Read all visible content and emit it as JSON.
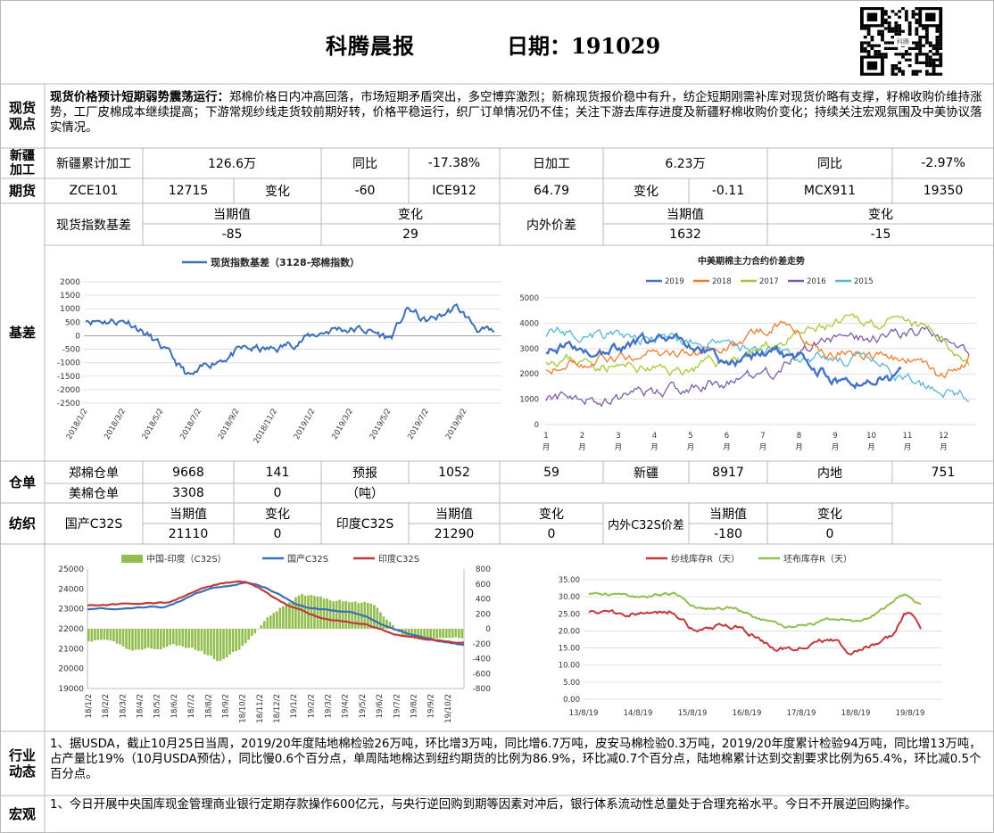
{
  "header": {
    "title": "科腾晨报",
    "date_label": "日期：",
    "date_value": "191029",
    "qr_text": "科腾"
  },
  "spot_view": {
    "label": "现货观点",
    "headline": "现货价格预计短期弱势震荡运行：",
    "text": "郑棉价格日内冲高回落，市场短期矛盾突出，多空博弈激烈；新棉现货报价稳中有升，纺企短期刚需补库对现货价略有支撑，籽棉收购价维持涨势，工厂皮棉成本继续提高；下游常规纱线走货较前期好转，价格平稳运行，织厂订单情况仍不佳；关注下游去库存进度及新疆籽棉收购价变化；持续关注宏观氛围及中美协议落实情况。"
  },
  "xinjiang": {
    "label": "新疆加工",
    "cum_label": "新疆累计加工",
    "cum_value": "126.6万",
    "yoy_label1": "同比",
    "yoy_value1": "-17.38%",
    "daily_label": "日加工",
    "daily_value": "6.23万",
    "yoy_label2": "同比",
    "yoy_value2": "-2.97%"
  },
  "futures": {
    "label": "期货",
    "zce_code": "ZCE101",
    "zce_price": "12715",
    "chg_label1": "变化",
    "zce_chg": "-60",
    "ice_code": "ICE912",
    "ice_price": "64.79",
    "chg_label2": "变化",
    "ice_chg": "-0.11",
    "mcx_code": "MCX911",
    "mcx_price": "19350"
  },
  "basis": {
    "label": "基差",
    "spot_index_label": "现货指数基差",
    "cur_label1": "当期值",
    "chg_label1": "变化",
    "cur_value1": "-85",
    "chg_value1": "29",
    "diff_label": "内外价差",
    "cur_label2": "当期值",
    "chg_label2": "变化",
    "cur_value2": "1632",
    "chg_value2": "-15"
  },
  "chart_basis": {
    "legend": "现货指数基差（3128-郑棉指数）",
    "y_ticks": [
      "2000",
      "1500",
      "1000",
      "500",
      "0",
      "-500",
      "-1000",
      "-1500",
      "-2000",
      "-2500"
    ],
    "x_ticks": [
      "2018/1/2",
      "2018/3/2",
      "2018/5/2",
      "2018/7/2",
      "2018/9/2",
      "2018/11/2",
      "2019/1/2",
      "2019/3/2",
      "2019/5/2",
      "2019/7/2",
      "2019/9/2"
    ]
  },
  "chart_spread": {
    "title": "中美期棉主力合约价差走势",
    "legend": [
      "2019",
      "2018",
      "2017",
      "2016",
      "2015"
    ],
    "colors": [
      "#4472c4",
      "#ed7d31",
      "#a5c83b",
      "#7b5ea7",
      "#5bb5d5"
    ],
    "y_ticks": [
      "5000",
      "4000",
      "3000",
      "2000",
      "1000",
      "0"
    ],
    "x_ticks": [
      "1",
      "2",
      "3",
      "4",
      "5",
      "6",
      "7",
      "8",
      "9",
      "10",
      "11",
      "12"
    ],
    "x_unit": "月"
  },
  "warehouse": {
    "label": "仓单",
    "zheng_label": "郑棉仓单",
    "zheng_value": "9668",
    "zheng_chg": "141",
    "forecast_label": "预报",
    "forecast_unit": "（吨）",
    "forecast_value": "1052",
    "forecast_chg": "59",
    "xj_label": "新疆",
    "xj_value": "8917",
    "inland_label": "内地",
    "inland_value": "751",
    "us_label": "美棉仓单",
    "us_value": "3308",
    "us_chg": "0"
  },
  "textile": {
    "label": "纺织",
    "cn_label": "国产C32S",
    "cur_label1": "当期值",
    "chg_label1": "变化",
    "cn_value": "21110",
    "cn_chg": "0",
    "in_label": "印度C32S",
    "cur_label2": "当期值",
    "chg_label2": "变化",
    "in_value": "21290",
    "in_chg": "0",
    "diff_label": "内外C32S价差",
    "cur_label3": "当期值",
    "chg_label3": "变化",
    "diff_value": "-180",
    "diff_chg": "0"
  },
  "chart_yarn": {
    "legend": [
      "中国-印度（C32S）",
      "国产C32S",
      "印度C32S"
    ],
    "colors": [
      "#92bd4f",
      "#3b6fb6",
      "#c0393b"
    ],
    "y_left": [
      "25000",
      "24000",
      "23000",
      "22000",
      "21000",
      "20000",
      "19000"
    ],
    "y_right": [
      "800",
      "600",
      "400",
      "200",
      "0",
      "-200",
      "-400",
      "-600",
      "-800"
    ],
    "x_ticks": [
      "18/1/2",
      "18/2/2",
      "18/3/2",
      "18/4/2",
      "18/5/2",
      "18/6/2",
      "18/7/2",
      "18/8/2",
      "18/9/2",
      "18/10/2",
      "18/11/2",
      "18/12/2",
      "19/1/2",
      "19/2/2",
      "19/3/2",
      "19/4/2",
      "19/5/2",
      "19/6/2",
      "19/7/2",
      "19/8/2",
      "19/9/2",
      "19/10/2"
    ]
  },
  "chart_stock": {
    "legend": [
      "纱线库存R（天）",
      "坯布库存R（天）"
    ],
    "colors": [
      "#c0393b",
      "#92bd4f"
    ],
    "y_ticks": [
      "35.00",
      "30.00",
      "25.00",
      "20.00",
      "15.00",
      "10.00",
      "5.00",
      "0.00"
    ],
    "x_ticks": [
      "13/8/19",
      "14/8/19",
      "15/8/19",
      "16/8/19",
      "17/8/19",
      "18/8/19",
      "19/8/19"
    ]
  },
  "industry": {
    "label": "行业动态",
    "text": "1、据USDA，截止10月25日当周，2019/20年度陆地棉检验26万吨，环比增3万吨，同比增6.7万吨，皮安马棉检验0.3万吨，2019/20年度累计检验94万吨，同比增13万吨，占产量比19%（10月USDA预估），同比慢0.6个百分点，单周陆地棉达到纽约期货的比例为86.9%，环比减0.7个百分点，陆地棉累计达到交割要求比例为65.4%，环比减0.5个百分点。"
  },
  "macro": {
    "label": "宏观",
    "text": "1、今日开展中央国库现金管理商业银行定期存款操作600亿元，与央行逆回购到期等因素对冲后，银行体系流动性总量处于合理充裕水平。今日不开展逆回购操作。"
  }
}
